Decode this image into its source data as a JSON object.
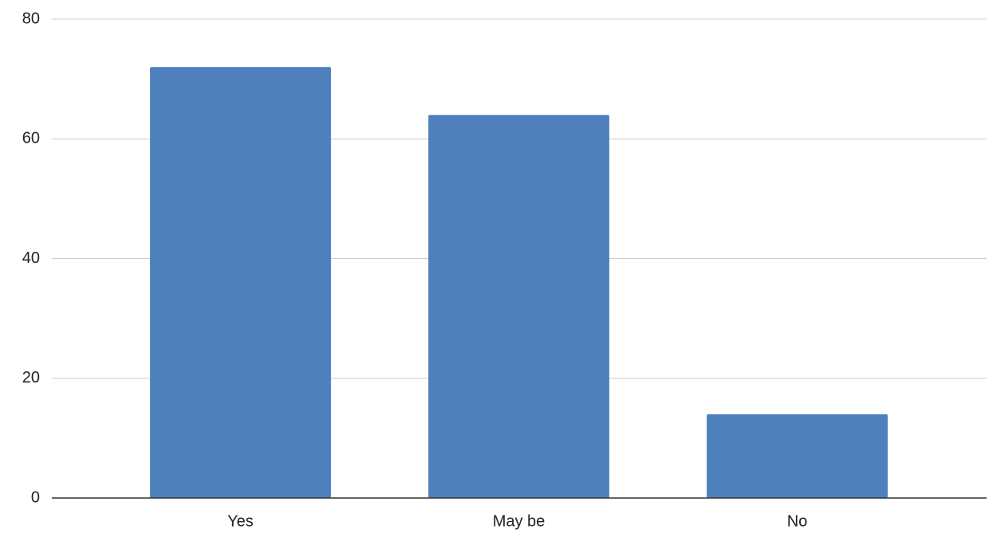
{
  "chart_data": {
    "type": "bar",
    "categories": [
      "Yes",
      "May be",
      "No"
    ],
    "values": [
      72,
      64,
      14
    ],
    "color": "#4e80bd",
    "ylim": [
      0,
      80
    ],
    "yticks": [
      0,
      20,
      40,
      60,
      80
    ],
    "grid": true
  }
}
